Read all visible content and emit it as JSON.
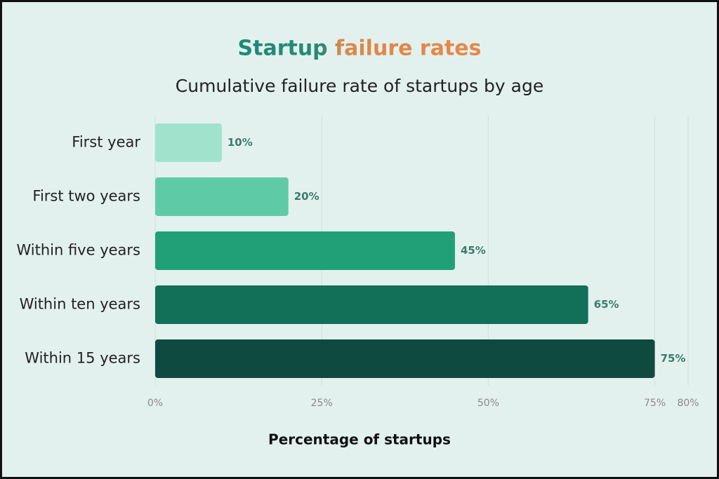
{
  "chart_data": {
    "type": "barh",
    "title": "Startup failure rates",
    "subtitle": "Cumulative failure rate of startups by age",
    "x_label": "Percentage of startups",
    "categories": [
      "First year",
      "First two years",
      "Within five years",
      "Within ten years",
      "Within 15 years"
    ],
    "values": [
      10,
      20,
      45,
      65,
      75
    ],
    "value_labels": [
      "10%",
      "20%",
      "45%",
      "65%",
      "75%"
    ],
    "colors": [
      "#a1e2cd",
      "#5fcba6",
      "#21a077",
      "#126f58",
      "#0f4a40"
    ],
    "xlim": [
      0,
      80
    ],
    "xticks": [
      {
        "value": 0,
        "label": "0%"
      },
      {
        "value": 25,
        "label": "25%"
      },
      {
        "value": 50,
        "label": "50%"
      },
      {
        "value": 75,
        "label": "75%"
      },
      {
        "value": 80,
        "label": "80%"
      }
    ],
    "grid": true
  }
}
